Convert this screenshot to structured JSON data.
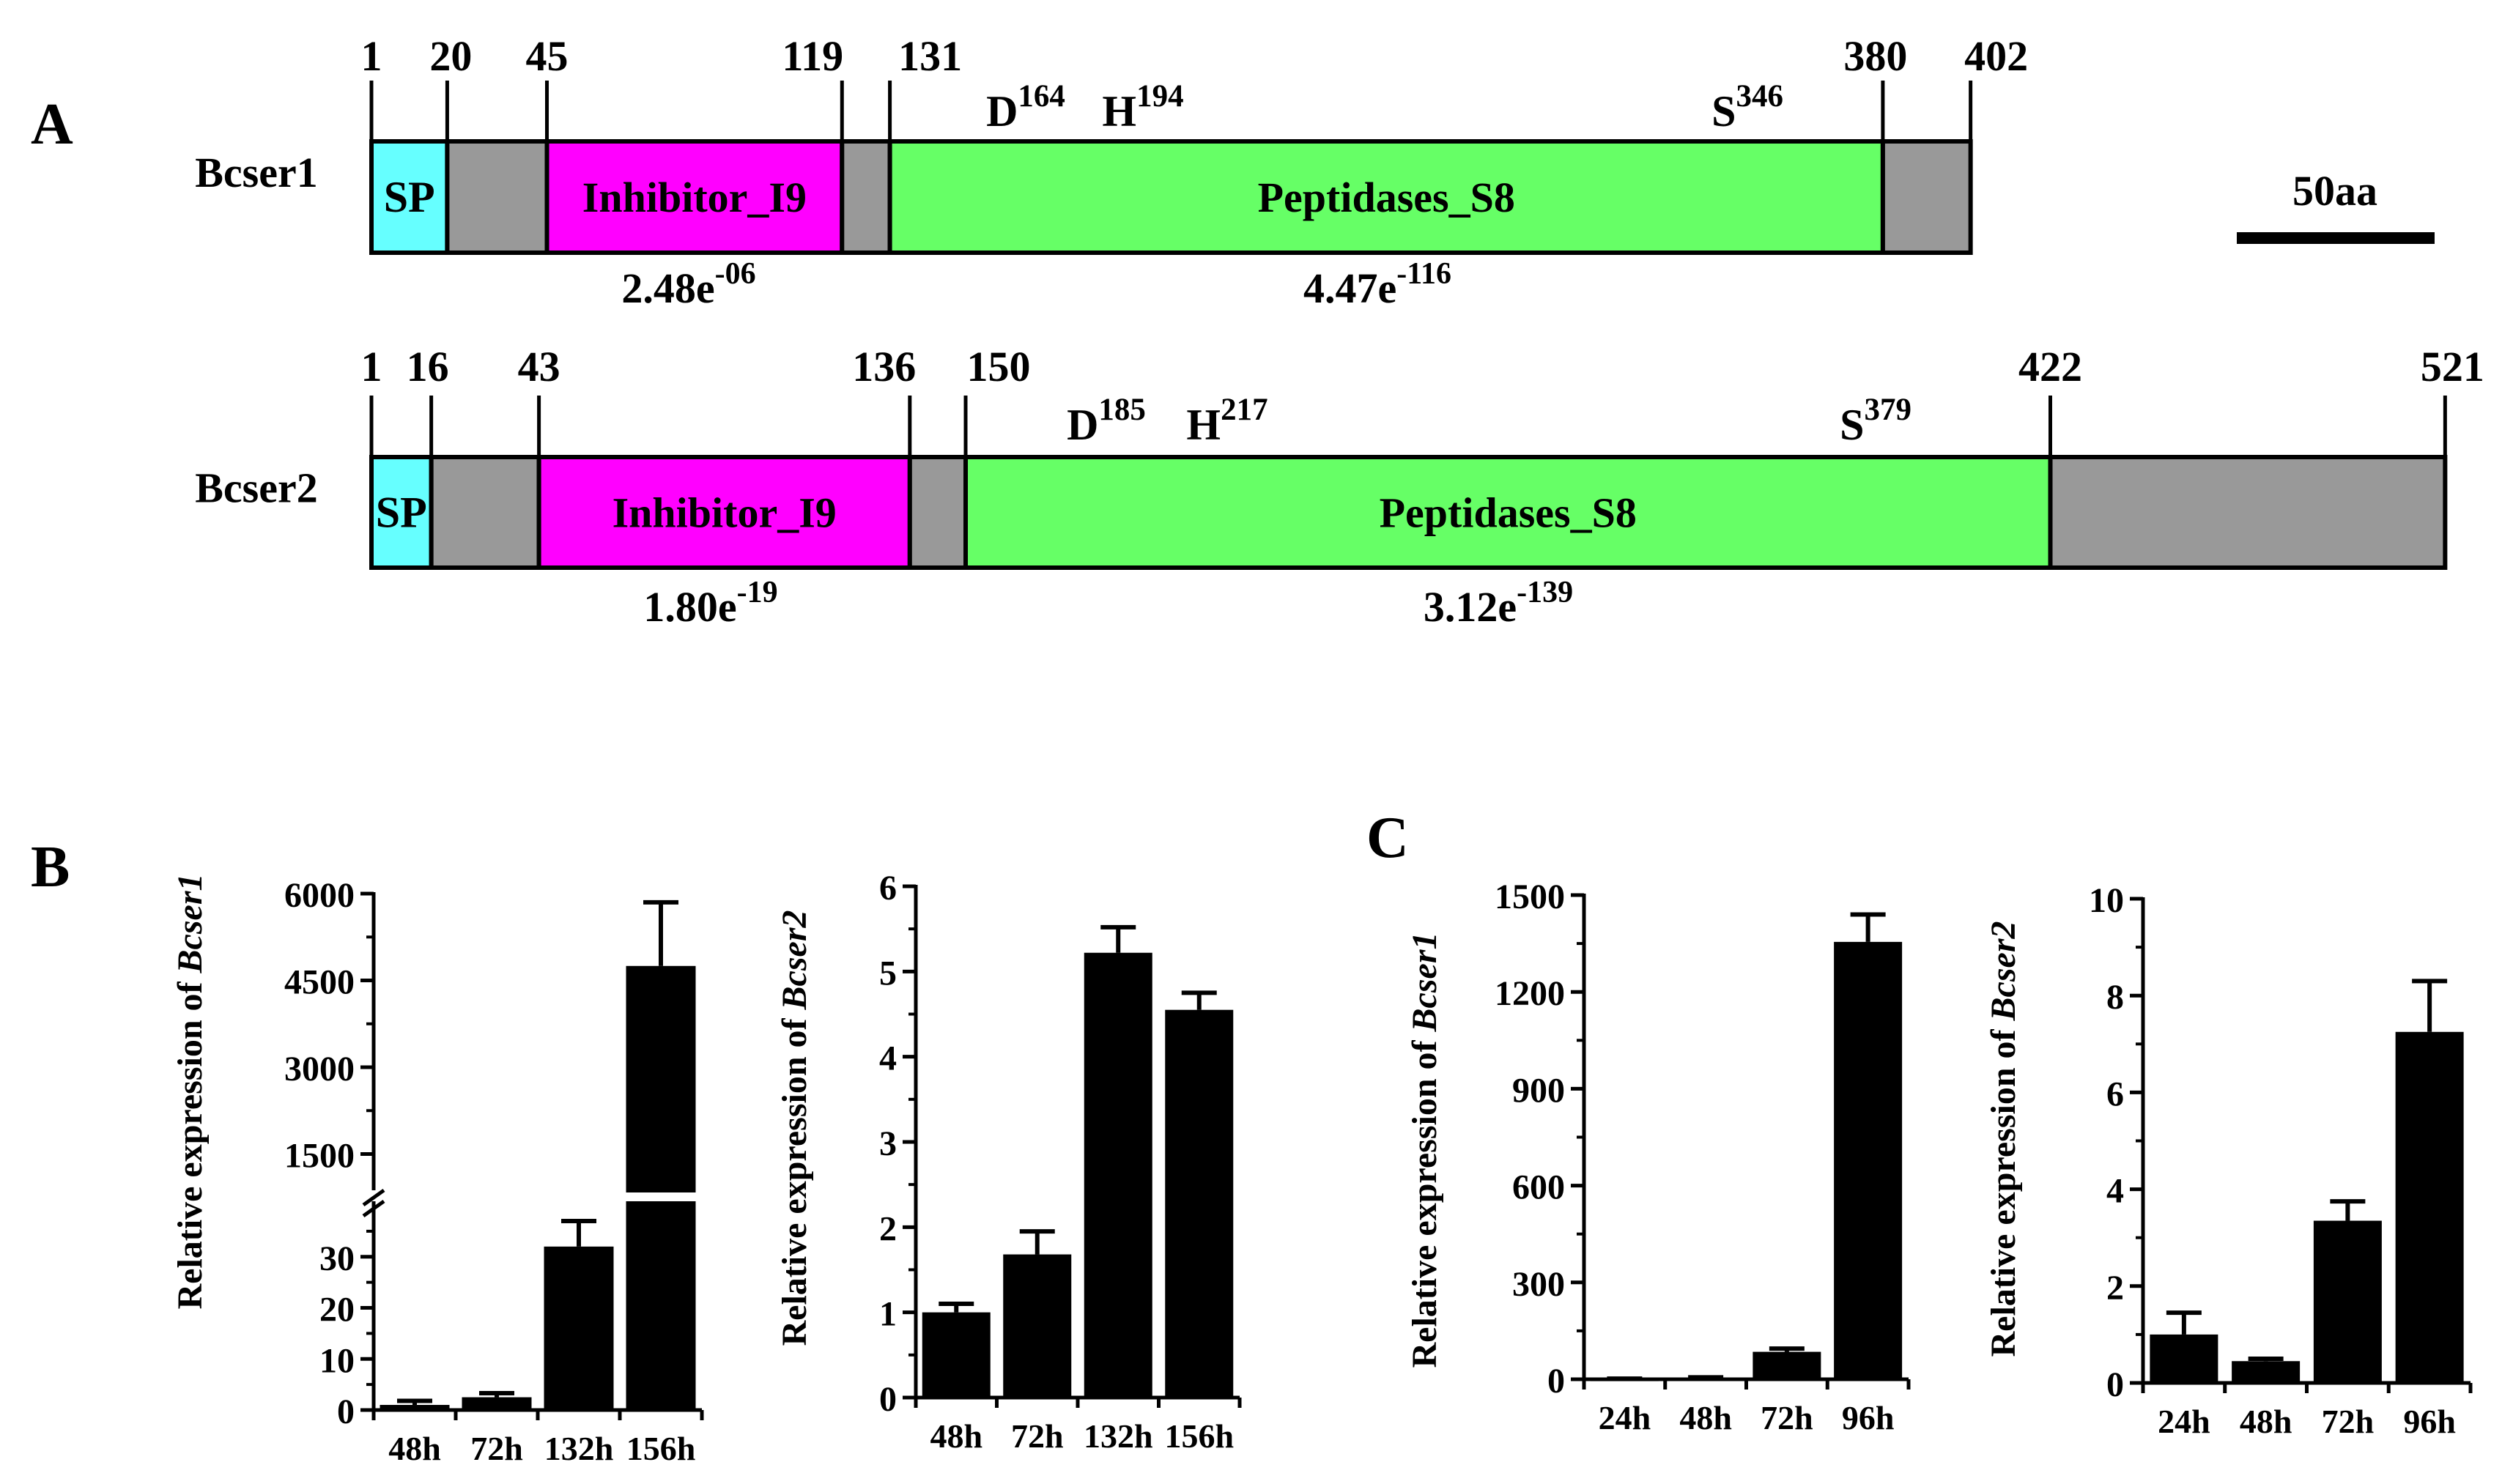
{
  "panels": {
    "a": "A",
    "b": "B",
    "c": "C"
  },
  "domain_maps": {
    "scale_bar_label": "50aa",
    "proteins": [
      {
        "name": "Bcser1",
        "positions": [
          "1",
          "20",
          "45",
          "119",
          "131",
          "380",
          "402"
        ],
        "segments": [
          {
            "label": "SP",
            "start": 1,
            "end": 20,
            "color": "#66ffff"
          },
          {
            "label": "",
            "start": 20,
            "end": 45,
            "color": "#999999"
          },
          {
            "label": "Inhibitor_I9",
            "start": 45,
            "end": 119,
            "color": "#ff00ff"
          },
          {
            "label": "",
            "start": 119,
            "end": 131,
            "color": "#999999"
          },
          {
            "label": "Peptidases_S8",
            "start": 131,
            "end": 380,
            "color": "#66ff66"
          },
          {
            "label": "",
            "start": 380,
            "end": 402,
            "color": "#999999"
          }
        ],
        "active_sites": [
          {
            "residue": "D",
            "position": "164"
          },
          {
            "residue": "H",
            "position": "194"
          },
          {
            "residue": "S",
            "position": "346"
          }
        ],
        "evalues": [
          {
            "base": "2.48e",
            "exp": "-06"
          },
          {
            "base": "4.47e",
            "exp": "-116"
          }
        ]
      },
      {
        "name": "Bcser2",
        "positions": [
          "1",
          "16",
          "43",
          "136",
          "150",
          "422",
          "521"
        ],
        "segments": [
          {
            "label": "SP",
            "start": 1,
            "end": 16,
            "color": "#66ffff"
          },
          {
            "label": "",
            "start": 16,
            "end": 43,
            "color": "#999999"
          },
          {
            "label": "Inhibitor_I9",
            "start": 43,
            "end": 136,
            "color": "#ff00ff"
          },
          {
            "label": "",
            "start": 136,
            "end": 150,
            "color": "#999999"
          },
          {
            "label": "Peptidases_S8",
            "start": 150,
            "end": 422,
            "color": "#66ff66"
          },
          {
            "label": "",
            "start": 422,
            "end": 521,
            "color": "#999999"
          }
        ],
        "active_sites": [
          {
            "residue": "D",
            "position": "185"
          },
          {
            "residue": "H",
            "position": "217"
          },
          {
            "residue": "S",
            "position": "379"
          }
        ],
        "evalues": [
          {
            "base": "1.80e",
            "exp": "-19"
          },
          {
            "base": "3.12e",
            "exp": "-139"
          }
        ]
      }
    ]
  },
  "chart_data": [
    {
      "id": "b1",
      "type": "bar",
      "panel": "B",
      "ylabel_prefix": "Relative expression of ",
      "ylabel_gene": "Bcser1",
      "categories": [
        "48h",
        "72h",
        "132h",
        "156h"
      ],
      "values": [
        1,
        2.5,
        32,
        4750
      ],
      "errors": [
        0.8,
        0.8,
        5,
        1100
      ],
      "broken_axis": {
        "lower_range": [
          0,
          38
        ],
        "upper_range": [
          1000,
          6000
        ],
        "lower_ticks": [
          0,
          10,
          20,
          30
        ],
        "upper_ticks": [
          1500,
          3000,
          4500,
          6000
        ]
      },
      "tick_labels": [
        "0",
        "10",
        "20",
        "30",
        "1500",
        "3000",
        "4500",
        "6000"
      ]
    },
    {
      "id": "b2",
      "type": "bar",
      "panel": "B",
      "ylabel_prefix": "Relative expression of ",
      "ylabel_gene": "Bcser2",
      "categories": [
        "48h",
        "72h",
        "132h",
        "156h"
      ],
      "values": [
        1.0,
        1.68,
        5.22,
        4.55
      ],
      "errors": [
        0.1,
        0.27,
        0.3,
        0.2
      ],
      "ylim": [
        0,
        6
      ],
      "ticks": [
        0,
        1,
        2,
        3,
        4,
        5,
        6
      ],
      "tick_labels": [
        "0",
        "1",
        "2",
        "3",
        "4",
        "5",
        "6"
      ]
    },
    {
      "id": "c1",
      "type": "bar",
      "panel": "C",
      "ylabel_prefix": "Relative expression of ",
      "ylabel_gene": "Bcser1",
      "categories": [
        "24h",
        "48h",
        "72h",
        "96h"
      ],
      "values": [
        1,
        4,
        85,
        1355
      ],
      "errors": [
        1,
        2,
        10,
        85
      ],
      "ylim": [
        0,
        1500
      ],
      "ticks": [
        0,
        300,
        600,
        900,
        1200,
        1500
      ],
      "tick_labels": [
        "0",
        "300",
        "600",
        "900",
        "1200",
        "1500"
      ]
    },
    {
      "id": "c2",
      "type": "bar",
      "panel": "C",
      "ylabel_prefix": "Relative expression of ",
      "ylabel_gene": "Bcser2",
      "categories": [
        "24h",
        "48h",
        "72h",
        "96h"
      ],
      "values": [
        1.0,
        0.45,
        3.35,
        7.25
      ],
      "errors": [
        0.45,
        0.05,
        0.4,
        1.05
      ],
      "ylim": [
        0,
        10
      ],
      "ticks": [
        0,
        2,
        4,
        6,
        8,
        10
      ],
      "tick_labels": [
        "0",
        "2",
        "4",
        "6",
        "8",
        "10"
      ]
    }
  ]
}
